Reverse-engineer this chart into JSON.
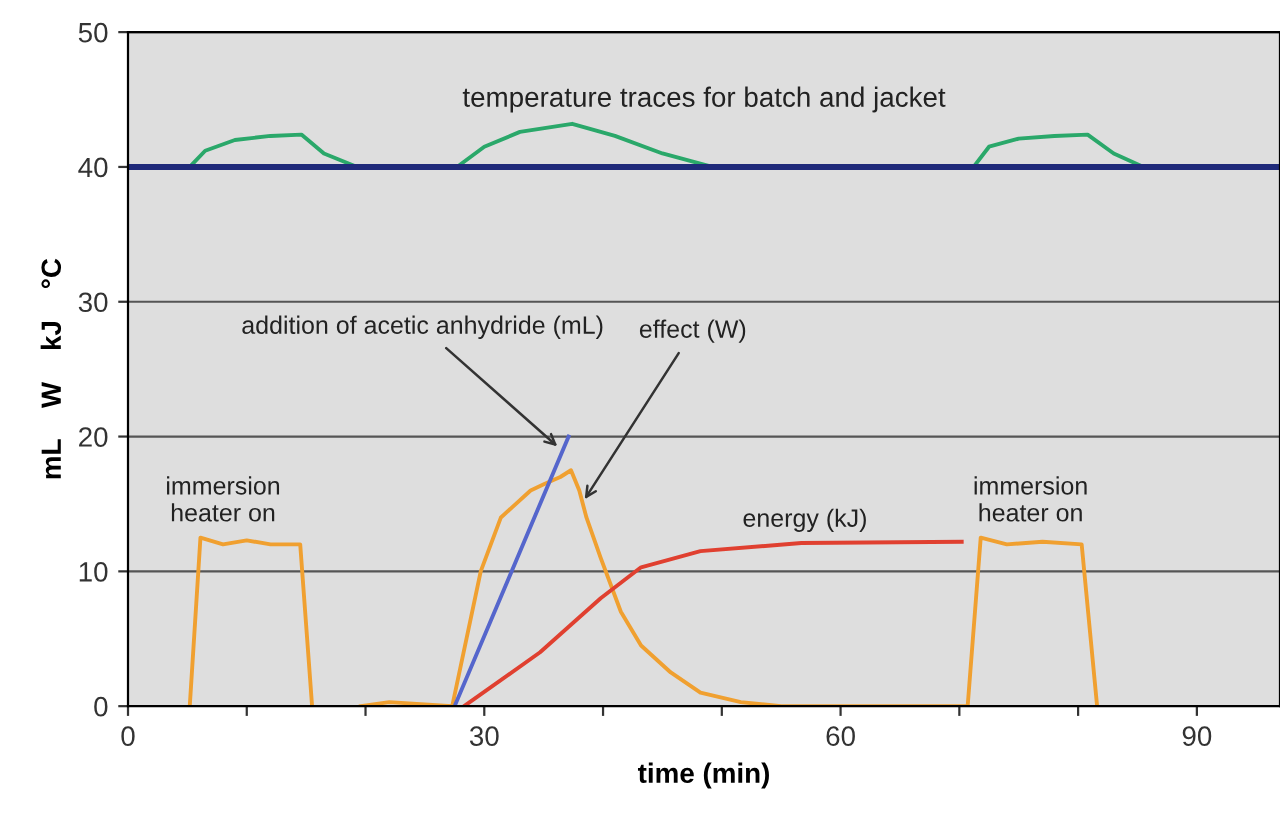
{
  "chart_data": {
    "type": "line",
    "xlabel": "time (min)",
    "ylabel": "mL    W    kJ    °C",
    "xlim": [
      0,
      97
    ],
    "ylim": [
      0,
      50
    ],
    "xticks": [
      0,
      {
        "value": 10,
        "label": null
      },
      {
        "value": 20,
        "label": null
      },
      30,
      {
        "value": 40,
        "label": null
      },
      {
        "value": 50,
        "label": null
      },
      60,
      {
        "value": 70,
        "label": null
      },
      {
        "value": 80,
        "label": null
      },
      90
    ],
    "yticks": [
      0,
      10,
      20,
      30,
      40,
      50
    ],
    "grid": "y",
    "legend": false,
    "marker": "none",
    "line_style": "solid",
    "series": [
      {
        "color": "#2aa86a",
        "x": [
          0,
          5.2,
          6.5,
          9,
          12,
          14.6,
          16.5,
          19.3,
          27.7,
          30,
          33,
          37.4,
          41,
          45,
          49.2,
          71.2,
          72.5,
          75,
          78,
          80.8,
          83,
          85.5
        ],
        "values": [
          40,
          40,
          41.2,
          42,
          42.3,
          42.4,
          41,
          40,
          40,
          41.5,
          42.6,
          43.2,
          42.3,
          41,
          40,
          40,
          41.5,
          42.1,
          42.3,
          42.4,
          41,
          40
        ]
      },
      {
        "color": "#1f2a7a",
        "x": [
          0,
          97
        ],
        "values": [
          40,
          40
        ]
      },
      {
        "color": "#f0a030",
        "x": [
          5.2,
          6.1,
          8,
          10,
          12,
          14.5,
          15.5,
          15.6,
          19.6,
          22,
          27.3,
          29.7,
          31.4,
          33.9,
          35.1,
          36.4,
          37.3,
          38,
          38.6,
          39.8,
          41.5,
          43.2,
          45.7,
          48.2,
          51.6,
          55,
          70.7,
          71.8,
          74,
          77,
          80.3,
          81.6
        ],
        "values": [
          0,
          12.5,
          12,
          12.3,
          12,
          12,
          0,
          null,
          0,
          0.3,
          0,
          10,
          14,
          16,
          16.5,
          17,
          17.5,
          16,
          14,
          11,
          7,
          4.5,
          2.5,
          1,
          0.3,
          0,
          0,
          12.5,
          12,
          12.2,
          12,
          0
        ]
      },
      {
        "color": "#5566cc",
        "x": [
          27.5,
          37.1
        ],
        "values": [
          0,
          20
        ]
      },
      {
        "color": "#e04030",
        "x": [
          28.3,
          34.7,
          39.8,
          43.2,
          48.2,
          56.7,
          70.2
        ],
        "values": [
          0,
          4,
          8,
          10.3,
          11.5,
          12.1,
          12.2
        ]
      }
    ],
    "annotations": [
      "temperature traces for batch and jacket",
      {
        "text": "addition of acetic anhydride (mL)",
        "x": 36.5,
        "y": 19
      },
      {
        "text": "effect (W)",
        "x": 38.2,
        "y": 15
      },
      {
        "text": "energy (kJ)",
        "x": 57,
        "y": 12.1
      },
      {
        "text": "immersion\nheater on",
        "x": 8,
        "y": 12.5
      },
      {
        "text": "immersion\nheater on",
        "x": 76,
        "y": 12.5
      }
    ]
  }
}
